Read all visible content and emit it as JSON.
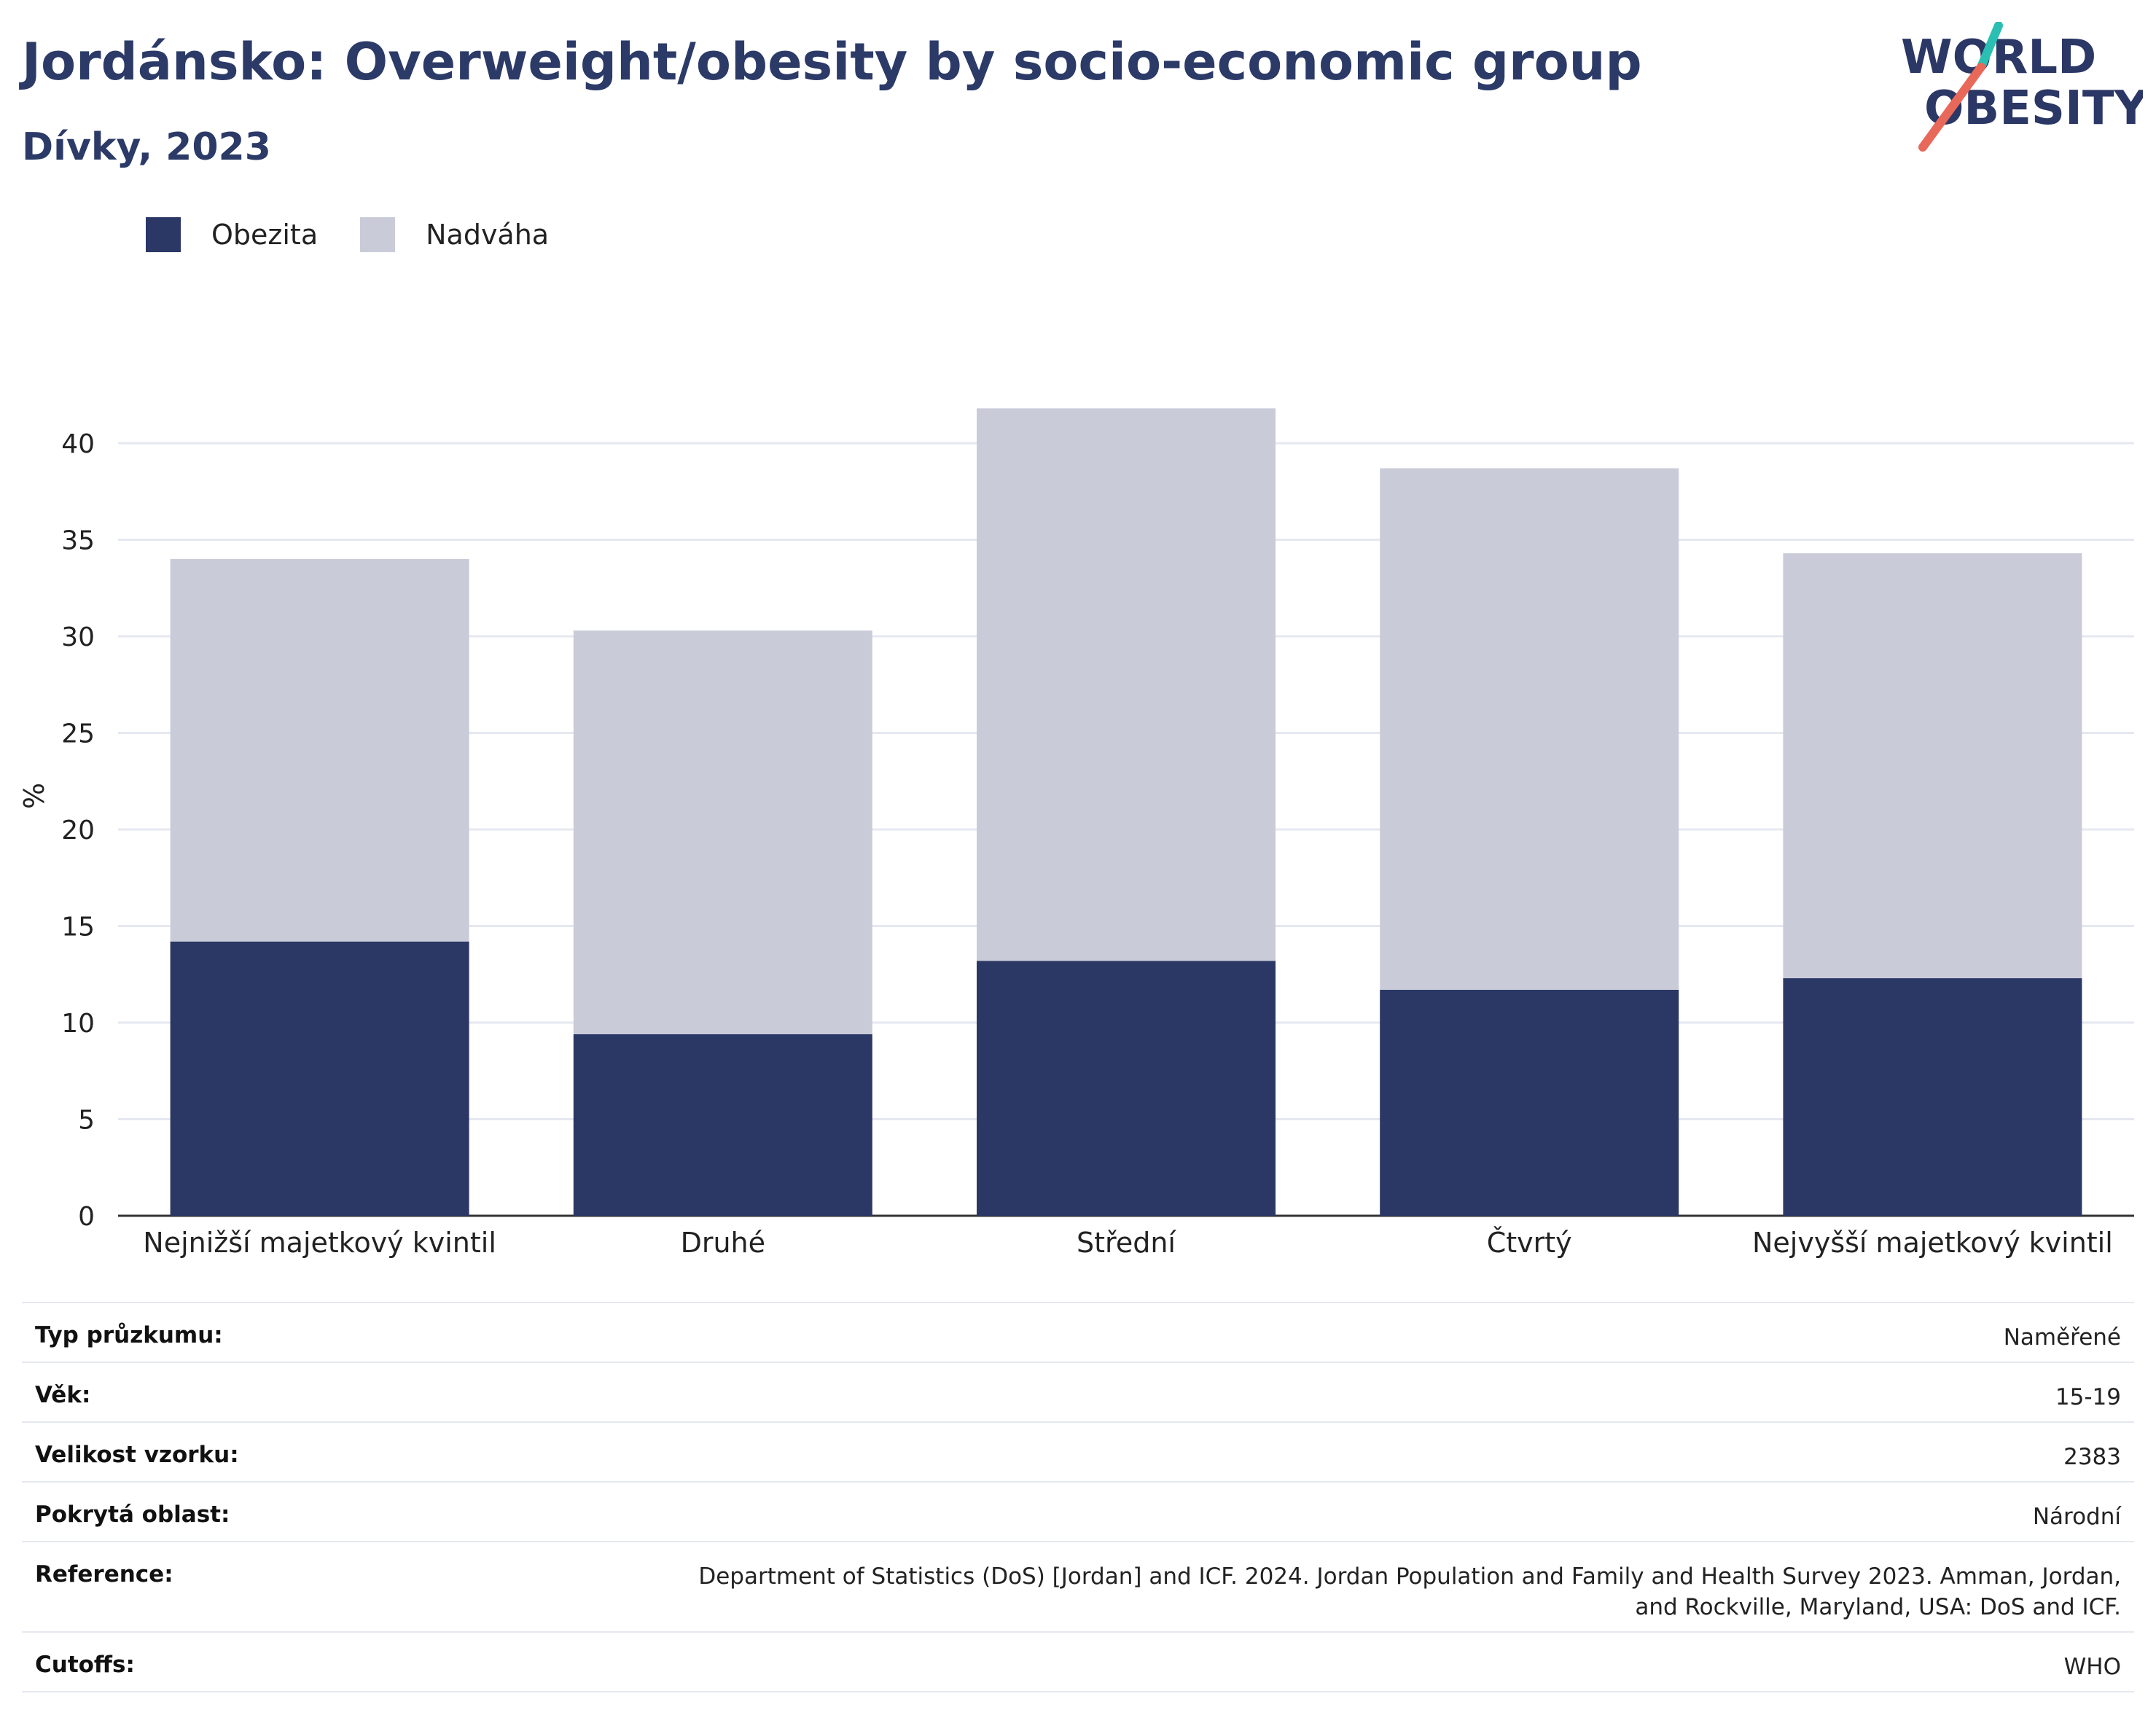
{
  "header": {
    "title": "Jordánsko: Overweight/obesity by socio-economic group",
    "subtitle": "Dívky, 2023"
  },
  "logo": {
    "line1": "WORLD",
    "line2": "OBESITY",
    "accent_colors": [
      "#2bbfb3",
      "#e8685a"
    ]
  },
  "legend": {
    "items": [
      {
        "label": "Obezita",
        "color": "#2b3765"
      },
      {
        "label": "Nadváha",
        "color": "#c9ccd8"
      }
    ]
  },
  "chart_data": {
    "type": "bar",
    "stacked": true,
    "categories": [
      "Nejnižší majetkový kvintil",
      "Druhé",
      "Střední",
      "Čtvrtý",
      "Nejvyšší majetkový kvintil"
    ],
    "series": [
      {
        "name": "Obezita",
        "color": "#2b3765",
        "values": [
          14.2,
          9.4,
          13.2,
          11.7,
          12.3
        ]
      },
      {
        "name": "Nadváha",
        "color": "#c9ccd8",
        "values": [
          19.8,
          20.9,
          28.6,
          27.0,
          22.0
        ]
      }
    ],
    "ylabel": "%",
    "ylim": [
      0,
      42
    ],
    "yticks": [
      0,
      5,
      10,
      15,
      20,
      25,
      30,
      35,
      40
    ],
    "grid": true,
    "legend_position": "top-left"
  },
  "meta": [
    {
      "label": "Typ průzkumu:",
      "value": "Naměřené"
    },
    {
      "label": "Věk:",
      "value": "15-19"
    },
    {
      "label": "Velikost vzorku:",
      "value": "2383"
    },
    {
      "label": "Pokrytá oblast:",
      "value": "Národní"
    },
    {
      "label": "Reference:",
      "value": "Department of Statistics (DoS) [Jordan] and ICF. 2024. Jordan Population and Family and Health Survey 2023. Amman, Jordan, and Rockville, Maryland, USA: DoS and ICF."
    },
    {
      "label": "Cutoffs:",
      "value": "WHO"
    }
  ]
}
